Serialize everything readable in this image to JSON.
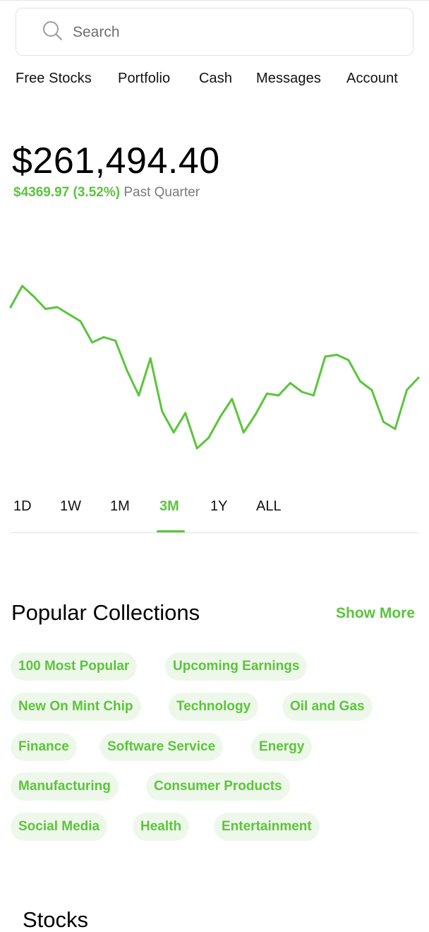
{
  "search": {
    "placeholder": "Search"
  },
  "nav": {
    "items": [
      {
        "label": "Free Stocks"
      },
      {
        "label": "Portfolio"
      },
      {
        "label": "Cash"
      },
      {
        "label": "Messages"
      },
      {
        "label": "Account"
      }
    ]
  },
  "portfolio": {
    "value": "$261,494.40",
    "change_amount": "$4369.97",
    "change_percent": "(3.52%)",
    "period": "Past Quarter"
  },
  "chart_data": {
    "type": "line",
    "series": [
      {
        "values": [
          188,
          200,
          194,
          187,
          188,
          184,
          180,
          168,
          171,
          169,
          152,
          138,
          159,
          129,
          117,
          128,
          108,
          114,
          126,
          136,
          117,
          127,
          139,
          138,
          145,
          140,
          138,
          160,
          161,
          158,
          146,
          141,
          123,
          119,
          141,
          148
        ]
      }
    ],
    "color": "#5ac53b",
    "ylim": [
      90,
      210
    ],
    "grid": false
  },
  "ranges": {
    "items": [
      "1D",
      "1W",
      "1M",
      "3M",
      "1Y",
      "ALL"
    ],
    "active": "3M"
  },
  "collections": {
    "title": "Popular Collections",
    "show_more": "Show More",
    "chips": [
      "100 Most Popular",
      "Upcoming Earnings",
      "New On Mint Chip",
      "Technology",
      "Oil and Gas",
      "Finance",
      "Software Service",
      "Energy",
      "Manufacturing",
      "Consumer Products",
      "Social Media",
      "Health",
      "Entertainment"
    ]
  },
  "stocks": {
    "title": "Stocks"
  },
  "colors": {
    "accent": "#5ac53b",
    "chip_bg": "#eef8ea"
  }
}
